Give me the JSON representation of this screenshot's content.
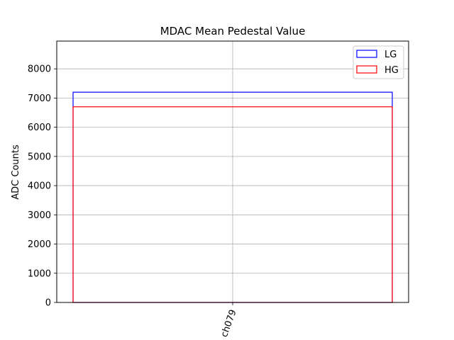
{
  "chart_data": {
    "type": "bar",
    "title": "MDAC Mean Pedestal Value",
    "xlabel": "",
    "ylabel": "ADC Counts",
    "categories": [
      "ch079"
    ],
    "series": [
      {
        "name": "LG",
        "values": [
          7200
        ],
        "color": "#0000ff"
      },
      {
        "name": "HG",
        "values": [
          6700
        ],
        "color": "#ff0000"
      }
    ],
    "ylim": [
      0,
      8950
    ],
    "yticks": [
      0,
      1000,
      2000,
      3000,
      4000,
      5000,
      6000,
      7000,
      8000
    ],
    "grid": true,
    "legend": "top-right",
    "bar_style": "outline"
  }
}
